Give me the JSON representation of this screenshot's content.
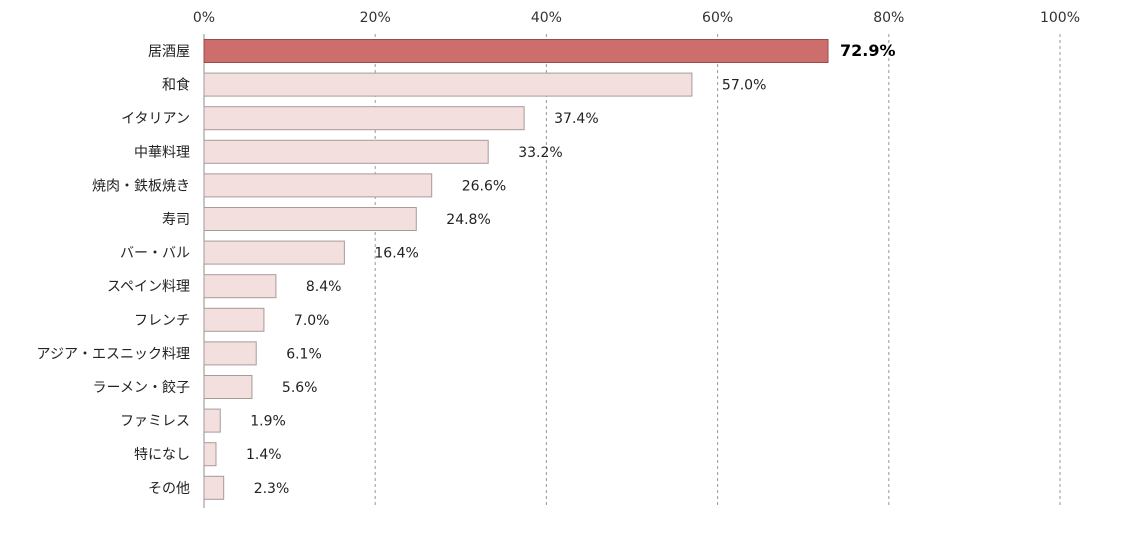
{
  "chart_data": {
    "type": "bar",
    "orientation": "horizontal",
    "title": "",
    "xlabel": "",
    "ylabel": "",
    "xlim": [
      0,
      100
    ],
    "tick_values": [
      0,
      20,
      40,
      60,
      80,
      100
    ],
    "tick_labels": [
      "0%",
      "20%",
      "40%",
      "60%",
      "80%",
      "100%"
    ],
    "axis_position": "top",
    "grid": true,
    "categories": [
      "居酒屋",
      "和食",
      "イタリアン",
      "中華料理",
      "焼肉・鉄板焼き",
      "寿司",
      "バー・バル",
      "スペイン料理",
      "フレンチ",
      "アジア・エスニック料理",
      "ラーメン・餃子",
      "ファミレス",
      "特になし",
      "その他"
    ],
    "values": [
      72.9,
      57.0,
      37.4,
      33.2,
      26.6,
      24.8,
      16.4,
      8.4,
      7.0,
      6.1,
      5.6,
      1.9,
      1.4,
      2.3
    ],
    "value_labels": [
      "72.9%",
      "57.0%",
      "37.4%",
      "33.2%",
      "26.6%",
      "24.8%",
      "16.4%",
      "8.4%",
      "7.0%",
      "6.1%",
      "5.6%",
      "1.9%",
      "1.4%",
      "2.3%"
    ],
    "highlight_index": 0,
    "colors": {
      "highlight_fill": "#cc6e6c",
      "highlight_stroke": "#9e4a48",
      "bar_fill": "#f3dfdd",
      "bar_stroke": "#a89a99"
    }
  }
}
